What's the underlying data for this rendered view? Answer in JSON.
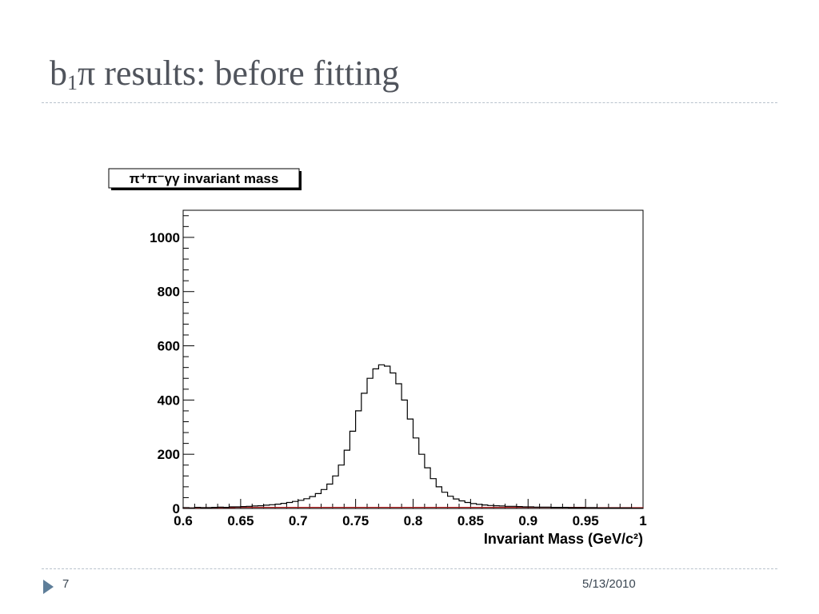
{
  "slide": {
    "title_main": "b",
    "title_sub": "1",
    "title_rest": "π results: before fitting",
    "page_number": "7",
    "date": "5/13/2010",
    "colors": {
      "title": "#50545c",
      "rule": "#b8c2cc",
      "accent": "#5e7e99"
    }
  },
  "chart_data": {
    "type": "histogram",
    "title": "π⁺π⁻γγ invariant mass",
    "xlabel": "Invariant Mass (GeV/c²)",
    "ylabel": "",
    "xlim": [
      0.6,
      1.0
    ],
    "ylim": [
      0,
      1100
    ],
    "xticks": [
      0.6,
      0.65,
      0.7,
      0.75,
      0.8,
      0.85,
      0.9,
      0.95,
      1
    ],
    "xtick_labels": [
      "0.6",
      "0.65",
      "0.7",
      "0.75",
      "0.8",
      "0.85",
      "0.9",
      "0.95",
      "1"
    ],
    "yticks": [
      0,
      200,
      400,
      600,
      800,
      1000
    ],
    "ytick_labels": [
      "0",
      "200",
      "400",
      "600",
      "800",
      "1000"
    ],
    "grid": false,
    "legend": "none",
    "series": [
      {
        "color": "#000000",
        "x": [
          0.6,
          0.605,
          0.61,
          0.615,
          0.62,
          0.625,
          0.63,
          0.635,
          0.64,
          0.645,
          0.65,
          0.655,
          0.66,
          0.665,
          0.67,
          0.675,
          0.68,
          0.685,
          0.69,
          0.695,
          0.7,
          0.705,
          0.71,
          0.715,
          0.72,
          0.725,
          0.73,
          0.735,
          0.74,
          0.745,
          0.75,
          0.755,
          0.76,
          0.765,
          0.77,
          0.775,
          0.78,
          0.785,
          0.79,
          0.795,
          0.8,
          0.805,
          0.81,
          0.815,
          0.82,
          0.825,
          0.83,
          0.835,
          0.84,
          0.845,
          0.85,
          0.855,
          0.86,
          0.865,
          0.87,
          0.875,
          0.88,
          0.885,
          0.89,
          0.895,
          0.9,
          0.905,
          0.91,
          0.915,
          0.92,
          0.925,
          0.93,
          0.935,
          0.94,
          0.945,
          0.95,
          0.955,
          0.96,
          0.965,
          0.97,
          0.975,
          0.98,
          0.985,
          0.99,
          0.995
        ],
        "values": [
          3,
          2,
          4,
          3,
          3,
          4,
          5,
          4,
          6,
          6,
          7,
          8,
          9,
          10,
          12,
          14,
          16,
          19,
          22,
          26,
          30,
          36,
          44,
          55,
          70,
          90,
          120,
          160,
          215,
          285,
          360,
          425,
          480,
          515,
          530,
          525,
          500,
          460,
          400,
          330,
          260,
          200,
          150,
          110,
          80,
          60,
          45,
          35,
          28,
          22,
          18,
          15,
          13,
          11,
          10,
          9,
          8,
          8,
          7,
          6,
          6,
          5,
          5,
          5,
          4,
          4,
          4,
          3,
          3,
          3,
          3,
          3,
          2,
          2,
          2,
          2,
          2,
          2,
          1,
          1
        ]
      },
      {
        "color": "#b22222",
        "x": [
          0.6,
          0.605,
          0.61,
          0.615,
          0.62,
          0.625,
          0.63,
          0.635,
          0.64,
          0.645,
          0.65,
          0.655,
          0.66,
          0.665,
          0.67,
          0.675,
          0.68,
          0.685,
          0.69,
          0.695,
          0.7,
          0.705,
          0.71,
          0.715,
          0.72,
          0.725,
          0.73,
          0.735,
          0.74,
          0.745,
          0.75,
          0.755,
          0.76,
          0.765,
          0.77,
          0.775,
          0.78,
          0.785,
          0.79,
          0.795,
          0.8,
          0.805,
          0.81,
          0.815,
          0.82,
          0.825,
          0.83,
          0.835,
          0.84,
          0.845,
          0.85,
          0.855,
          0.86,
          0.865,
          0.87,
          0.875,
          0.88,
          0.885,
          0.89,
          0.895,
          0.9,
          0.905,
          0.91,
          0.915,
          0.92,
          0.925,
          0.93,
          0.935,
          0.94,
          0.945,
          0.95,
          0.955,
          0.96,
          0.965,
          0.97,
          0.975,
          0.98,
          0.985,
          0.99,
          0.995
        ],
        "values": [
          2,
          2,
          2,
          3,
          3,
          3,
          3,
          3,
          3,
          4,
          4,
          4,
          4,
          4,
          4,
          4,
          4,
          4,
          4,
          4,
          4,
          4,
          4,
          4,
          4,
          4,
          4,
          4,
          4,
          4,
          4,
          4,
          4,
          4,
          4,
          4,
          4,
          4,
          4,
          4,
          4,
          4,
          4,
          4,
          4,
          4,
          4,
          4,
          4,
          4,
          4,
          4,
          4,
          4,
          4,
          4,
          4,
          4,
          4,
          4,
          4,
          4,
          4,
          4,
          4,
          4,
          4,
          4,
          4,
          4,
          3,
          3,
          3,
          3,
          3,
          3,
          3,
          3,
          3,
          3
        ]
      }
    ]
  }
}
